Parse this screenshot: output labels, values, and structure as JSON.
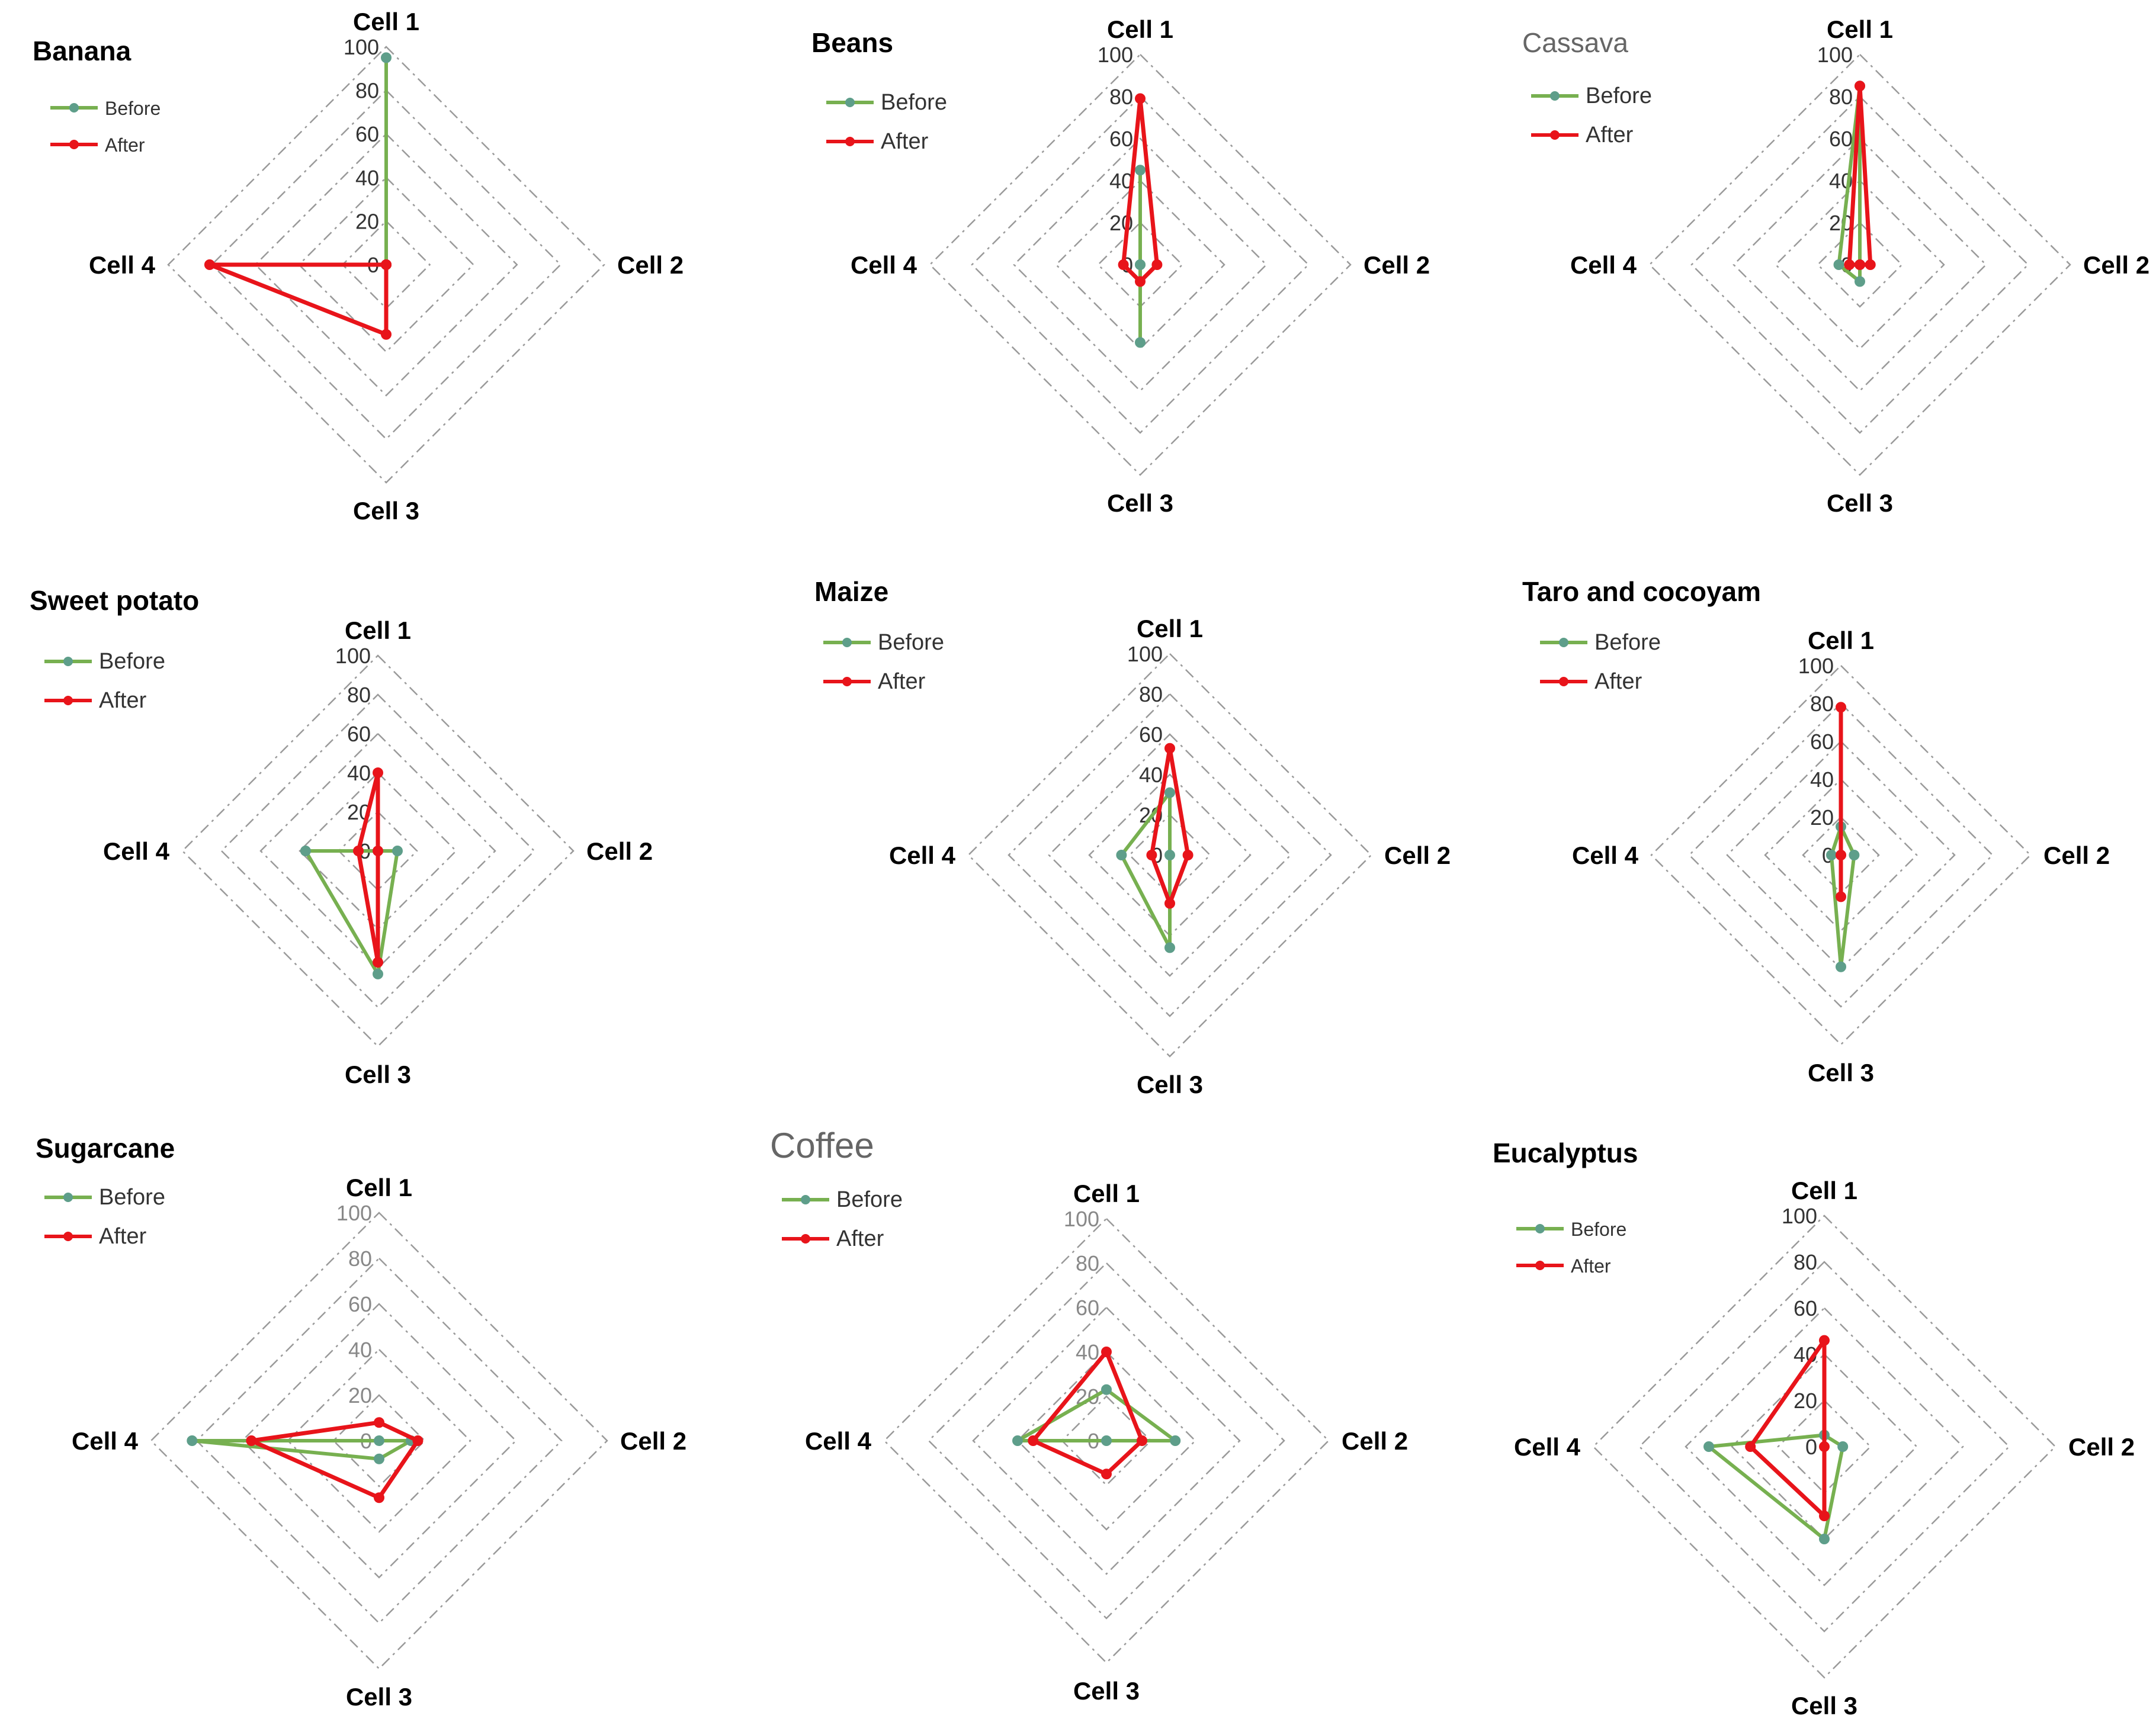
{
  "legend": {
    "before": "Before",
    "after": "After"
  },
  "colors": {
    "before": "#77b050",
    "before_marker": "#5e9e8a",
    "after": "#e8141a",
    "grid": "#9a9a9a"
  },
  "chart_data": [
    {
      "type": "radar",
      "title": "Banana",
      "categories": [
        "Cell 1",
        "Cell 2",
        "Cell 3",
        "Cell 4"
      ],
      "ticks": [
        "0",
        "20",
        "40",
        "60",
        "80",
        "100"
      ],
      "ylim": [
        0,
        100
      ],
      "series": [
        {
          "name": "Before",
          "values": [
            95,
            0,
            0,
            0
          ]
        },
        {
          "name": "After",
          "values": [
            0,
            0,
            32,
            81
          ]
        }
      ]
    },
    {
      "type": "radar",
      "title": "Beans",
      "categories": [
        "Cell 1",
        "Cell 2",
        "Cell 3",
        "Cell 4"
      ],
      "ticks": [
        "0",
        "20",
        "40",
        "60",
        "80",
        "100"
      ],
      "ylim": [
        0,
        100
      ],
      "series": [
        {
          "name": "Before",
          "values": [
            45,
            0,
            37,
            0
          ]
        },
        {
          "name": "After",
          "values": [
            79,
            8,
            8,
            8
          ]
        }
      ]
    },
    {
      "type": "radar",
      "title": "Cassava",
      "categories": [
        "Cell 1",
        "Cell 2",
        "Cell 3",
        "Cell 4"
      ],
      "ticks": [
        "0",
        "20",
        "40",
        "60",
        "80",
        "100"
      ],
      "ylim": [
        0,
        100
      ],
      "series": [
        {
          "name": "Before",
          "values": [
            85,
            0,
            8,
            10
          ]
        },
        {
          "name": "After",
          "values": [
            85,
            5,
            0,
            5
          ]
        }
      ]
    },
    {
      "type": "radar",
      "title": "Sweet potato",
      "categories": [
        "Cell 1",
        "Cell 2",
        "Cell 3",
        "Cell 4"
      ],
      "ticks": [
        "0",
        "20",
        "40",
        "60",
        "80",
        "100"
      ],
      "ylim": [
        0,
        100
      ],
      "series": [
        {
          "name": "Before",
          "values": [
            0,
            10,
            63,
            37
          ]
        },
        {
          "name": "After",
          "values": [
            40,
            0,
            57,
            10
          ]
        }
      ]
    },
    {
      "type": "radar",
      "title": "Maize",
      "categories": [
        "Cell 1",
        "Cell 2",
        "Cell 3",
        "Cell 4"
      ],
      "ticks": [
        "0",
        "20",
        "40",
        "60",
        "80",
        "100"
      ],
      "ylim": [
        0,
        100
      ],
      "series": [
        {
          "name": "Before",
          "values": [
            31,
            0,
            46,
            24
          ]
        },
        {
          "name": "After",
          "values": [
            53,
            9,
            24,
            9
          ]
        }
      ]
    },
    {
      "type": "radar",
      "title": "Taro and cocoyam",
      "categories": [
        "Cell 1",
        "Cell 2",
        "Cell 3",
        "Cell 4"
      ],
      "ticks": [
        "0",
        "20",
        "40",
        "60",
        "80",
        "100"
      ],
      "ylim": [
        0,
        100
      ],
      "series": [
        {
          "name": "Before",
          "values": [
            15,
            7,
            59,
            5
          ]
        },
        {
          "name": "After",
          "values": [
            78,
            0,
            22,
            0
          ]
        }
      ]
    },
    {
      "type": "radar",
      "title": "Sugarcane",
      "categories": [
        "Cell 1",
        "Cell 2",
        "Cell 3",
        "Cell 4"
      ],
      "ticks": [
        "0",
        "20",
        "40",
        "60",
        "80",
        "100"
      ],
      "ylim": [
        0,
        100
      ],
      "series": [
        {
          "name": "Before",
          "values": [
            0,
            14,
            8,
            82
          ]
        },
        {
          "name": "After",
          "values": [
            8,
            17,
            25,
            56
          ]
        }
      ]
    },
    {
      "type": "radar",
      "title": "Coffee",
      "categories": [
        "Cell 1",
        "Cell 2",
        "Cell 3",
        "Cell 4"
      ],
      "ticks": [
        "0",
        "20",
        "40",
        "60",
        "80",
        "100"
      ],
      "ylim": [
        0,
        100
      ],
      "series": [
        {
          "name": "Before",
          "values": [
            23,
            31,
            0,
            40
          ]
        },
        {
          "name": "After",
          "values": [
            40,
            16,
            15,
            33
          ]
        }
      ]
    },
    {
      "type": "radar",
      "title": "Eucalyptus",
      "categories": [
        "Cell 1",
        "Cell 2",
        "Cell 3",
        "Cell 4"
      ],
      "ticks": [
        "0",
        "20",
        "40",
        "60",
        "80",
        "100"
      ],
      "ylim": [
        0,
        100
      ],
      "series": [
        {
          "name": "Before",
          "values": [
            5,
            8,
            40,
            50
          ]
        },
        {
          "name": "After",
          "values": [
            46,
            0,
            30,
            32
          ]
        }
      ]
    }
  ]
}
